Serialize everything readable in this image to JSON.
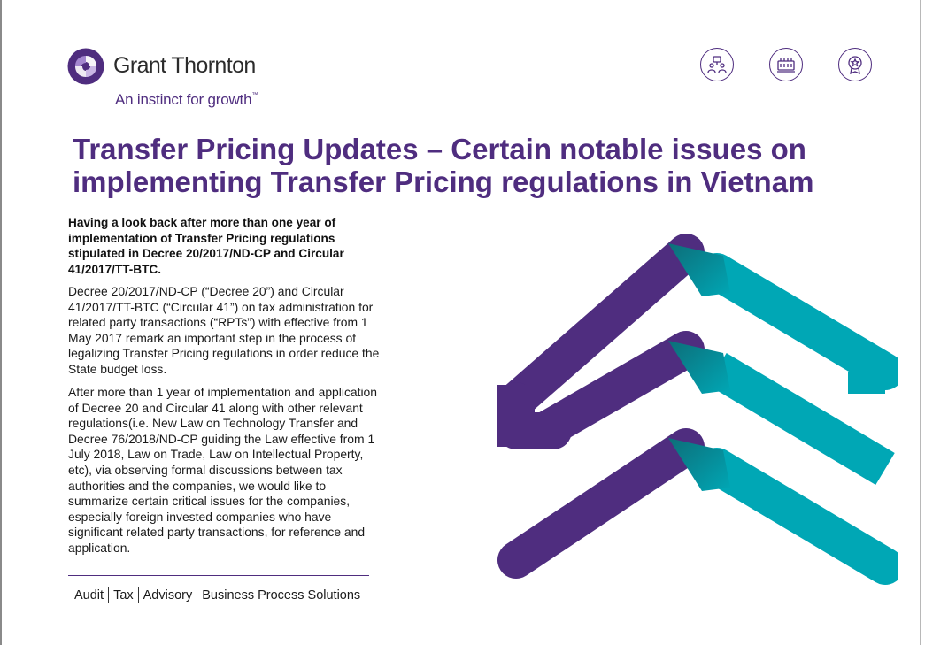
{
  "brand": {
    "name": "Grant Thornton",
    "tagline": "An instinct for growth",
    "tm": "™",
    "colors": {
      "purple": "#4f2d7f",
      "teal": "#00a7b5"
    }
  },
  "header_icons": [
    {
      "name": "people-meeting-icon"
    },
    {
      "name": "building-icon"
    },
    {
      "name": "award-badge-icon"
    }
  ],
  "title": "Transfer Pricing Updates – Certain notable issues on implementing Transfer Pricing regulations in Vietnam",
  "lead": "Having a look back after more than one year of implementation of Transfer Pricing regulations stipulated in Decree 20/2017/ND-CP and Circular 41/2017/TT-BTC.",
  "paragraphs": [
    "Decree 20/2017/ND-CP (“Decree 20”) and Circular 41/2017/TT-BTC (“Circular 41”) on tax administration for related party transactions (“RPTs”) with effective from 1 May 2017 remark an important step in the process of legalizing Transfer Pricing regulations in order reduce the State budget loss.",
    "After more than 1 year of implementation and application of Decree 20 and Circular 41 along with other relevant regulations(i.e. New Law on Technology Transfer and Decree 76/2018/ND-CP guiding the Law effective from 1 July 2018, Law on Trade, Law on Intellectual Property, etc), via observing formal discussions between tax authorities and the companies, we would like to  summarize certain critical issues for the companies, especially foreign invested companies who have significant related party transactions, for reference and application."
  ],
  "footer": {
    "items": [
      "Audit",
      "Tax",
      "Advisory",
      "Business Process Solutions"
    ]
  }
}
